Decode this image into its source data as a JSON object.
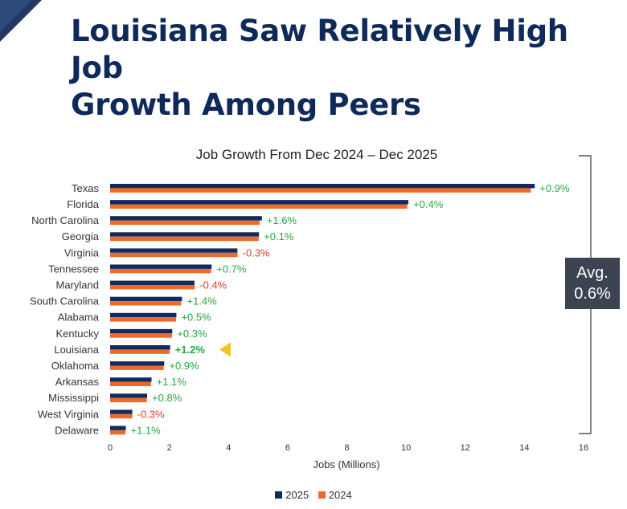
{
  "page": {
    "title_line1": "Louisiana Saw Relatively High Job",
    "title_line2": "Growth Among Peers"
  },
  "avg_box": {
    "label": "Avg.",
    "value": "0.6%"
  },
  "colors": {
    "series_2025": "#132a5e",
    "series_2024": "#ed6b2a",
    "positive": "#27a844",
    "negative": "#e03c2c",
    "highlight": "#f5c12b",
    "title": "#0f2a5a"
  },
  "chart_data": {
    "type": "bar",
    "orientation": "horizontal",
    "title": "Job Growth From Dec 2024 – Dec 2025",
    "xlabel": "Jobs (Millions)",
    "ylabel": "",
    "xlim": [
      0,
      16
    ],
    "xticks": [
      0,
      2,
      4,
      6,
      8,
      10,
      12,
      14,
      16
    ],
    "categories": [
      "Texas",
      "Florida",
      "North Carolina",
      "Georgia",
      "Virginia",
      "Tennessee",
      "Maryland",
      "South Carolina",
      "Alabama",
      "Kentucky",
      "Louisiana",
      "Oklahoma",
      "Arkansas",
      "Mississippi",
      "West Virginia",
      "Delaware"
    ],
    "series": [
      {
        "name": "2025",
        "values": [
          14.35,
          10.08,
          5.13,
          5.03,
          4.3,
          3.43,
          2.85,
          2.43,
          2.24,
          2.1,
          2.03,
          1.83,
          1.4,
          1.25,
          0.75,
          0.53
        ]
      },
      {
        "name": "2024",
        "values": [
          14.22,
          10.04,
          5.05,
          5.02,
          4.31,
          3.41,
          2.86,
          2.4,
          2.23,
          2.09,
          2.01,
          1.81,
          1.38,
          1.24,
          0.75,
          0.52
        ]
      }
    ],
    "growth_labels": [
      "+0.9%",
      "+0.4%",
      "+1.6%",
      "+0.1%",
      "-0.3%",
      "+0.7%",
      "-0.4%",
      "+1.4%",
      "+0.5%",
      "+0.3%",
      "+1.2%",
      "+0.9%",
      "+1.1%",
      "+0.8%",
      "-0.3%",
      "+1.1%"
    ],
    "highlight_category": "Louisiana",
    "legend": [
      "2025",
      "2024"
    ],
    "legend_position": "bottom"
  }
}
